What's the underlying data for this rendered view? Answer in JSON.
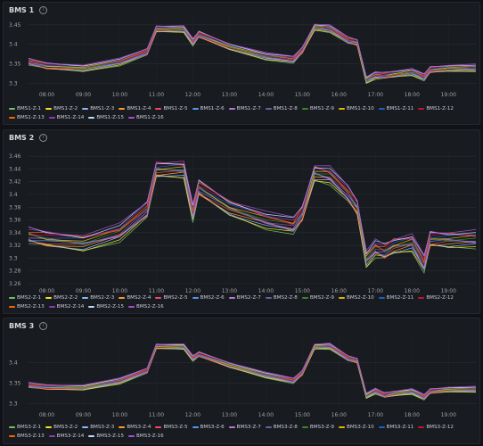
{
  "colors": [
    "#73bf69",
    "#fade2a",
    "#8ab8ff",
    "#ff9830",
    "#f2495c",
    "#5794f2",
    "#b877d9",
    "#705da0",
    "#37872d",
    "#e0b400",
    "#1f60c4",
    "#c4162a",
    "#fa6400",
    "#8f3bb8",
    "#c0d8ff",
    "#a352cc"
  ],
  "panels": [
    {
      "title": "BMS 1",
      "legend": [
        "BMS1-Z-1",
        "BMS1-Z-2",
        "BMS1-Z-3",
        "BMS1-Z-4",
        "BMS1-Z-5",
        "BMS1-Z-6",
        "BMS1-Z-7",
        "BMS1-Z-8",
        "BMS1-Z-9",
        "BMS1-Z-10",
        "BMS1-Z-11",
        "BMS1-Z-12",
        "BMS1-Z-13",
        "BMS1-Z-14",
        "BMS1-Z-15",
        "BMS1-Z-16"
      ],
      "yticks": [
        "3.45",
        "3.4",
        "3.35",
        "3.3"
      ],
      "xticks": [
        "08:00",
        "09:00",
        "10:00",
        "11:00",
        "12:00",
        "13:00",
        "14:00",
        "15:00",
        "16:00",
        "17:00",
        "18:00",
        "19:00"
      ]
    },
    {
      "title": "BMS 2",
      "legend": [
        "BMS2-Z-1",
        "BMS2-Z-2",
        "BMS2-Z-3",
        "BMS2-Z-4",
        "BMS2-Z-5",
        "BMS2-Z-6",
        "BMS2-Z-7",
        "BMS2-Z-8",
        "BMS2-Z-9",
        "BMS2-Z-10",
        "BMS2-Z-11",
        "BMS2-Z-12",
        "BMS2-Z-13",
        "BMS2-Z-14",
        "BMS2-Z-15",
        "BMS2-Z-16"
      ],
      "yticks": [
        "3.46",
        "3.44",
        "3.42",
        "3.4",
        "3.38",
        "3.36",
        "3.34",
        "3.32",
        "3.3",
        "3.28",
        "3.26"
      ],
      "xticks": [
        "08:00",
        "09:00",
        "10:00",
        "11:00",
        "12:00",
        "13:00",
        "14:00",
        "15:00",
        "16:00",
        "17:00",
        "18:00",
        "19:00"
      ]
    },
    {
      "title": "BMS 3",
      "legend": [
        "BMS3-Z-1",
        "BMS3-Z-2",
        "BMS3-Z-3",
        "BMS3-Z-4",
        "BMS3-Z-5",
        "BMS3-Z-6",
        "BMS3-Z-7",
        "BMS3-Z-8",
        "BMS3-Z-9",
        "BMS3-Z-10",
        "BMS3-Z-11",
        "BMS3-Z-12",
        "BMS3-Z-13",
        "BMS3-Z-14",
        "BMS3-Z-15",
        "BMS3-Z-16"
      ],
      "yticks": [
        "3.4",
        "3.35",
        "3.3"
      ],
      "xticks": [
        "08:00",
        "09:00",
        "10:00",
        "11:00",
        "12:00",
        "13:00",
        "14:00",
        "15:00",
        "16:00",
        "17:00",
        "18:00",
        "19:00"
      ]
    }
  ],
  "chart_data": [
    {
      "type": "line",
      "ylim": [
        3.29,
        3.47
      ],
      "x": [
        "07:30",
        "08:00",
        "09:00",
        "10:00",
        "10:45",
        "11:00",
        "11:45",
        "12:00",
        "12:10",
        "13:00",
        "14:00",
        "14:45",
        "15:00",
        "15:20",
        "15:45",
        "16:15",
        "16:30",
        "16:45",
        "17:00",
        "17:15",
        "17:30",
        "18:00",
        "18:20",
        "18:30",
        "19:00",
        "19:45"
      ],
      "values": [
        3.355,
        3.345,
        3.34,
        3.355,
        3.38,
        3.44,
        3.44,
        3.405,
        3.425,
        3.395,
        3.37,
        3.36,
        3.385,
        3.445,
        3.44,
        3.41,
        3.405,
        3.31,
        3.32,
        3.32,
        3.325,
        3.33,
        3.315,
        3.335,
        3.34,
        3.34
      ],
      "series_spread": 0.008
    },
    {
      "type": "line",
      "ylim": [
        3.26,
        3.47
      ],
      "x": [
        "07:30",
        "08:00",
        "09:00",
        "10:00",
        "10:45",
        "11:00",
        "11:45",
        "12:00",
        "12:10",
        "13:00",
        "14:00",
        "14:45",
        "15:00",
        "15:20",
        "15:45",
        "16:15",
        "16:30",
        "16:45",
        "17:00",
        "17:15",
        "17:30",
        "18:00",
        "18:20",
        "18:30",
        "19:00",
        "19:45"
      ],
      "values": [
        3.335,
        3.33,
        3.325,
        3.34,
        3.375,
        3.44,
        3.44,
        3.37,
        3.41,
        3.38,
        3.36,
        3.35,
        3.37,
        3.435,
        3.43,
        3.4,
        3.38,
        3.3,
        3.315,
        3.31,
        3.32,
        3.325,
        3.29,
        3.33,
        3.33,
        3.33
      ],
      "series_spread": 0.012
    },
    {
      "type": "line",
      "ylim": [
        3.29,
        3.46
      ],
      "x": [
        "07:30",
        "08:00",
        "09:00",
        "10:00",
        "10:45",
        "11:00",
        "11:45",
        "12:00",
        "12:10",
        "13:00",
        "14:00",
        "14:45",
        "15:00",
        "15:20",
        "15:45",
        "16:15",
        "16:30",
        "16:45",
        "17:00",
        "17:15",
        "17:30",
        "18:00",
        "18:20",
        "18:30",
        "19:00",
        "19:45"
      ],
      "values": [
        3.345,
        3.34,
        3.34,
        3.355,
        3.38,
        3.44,
        3.44,
        3.41,
        3.42,
        3.395,
        3.37,
        3.355,
        3.375,
        3.44,
        3.44,
        3.41,
        3.405,
        3.32,
        3.33,
        3.32,
        3.325,
        3.33,
        3.315,
        3.33,
        3.335,
        3.335
      ],
      "series_spread": 0.006
    }
  ]
}
